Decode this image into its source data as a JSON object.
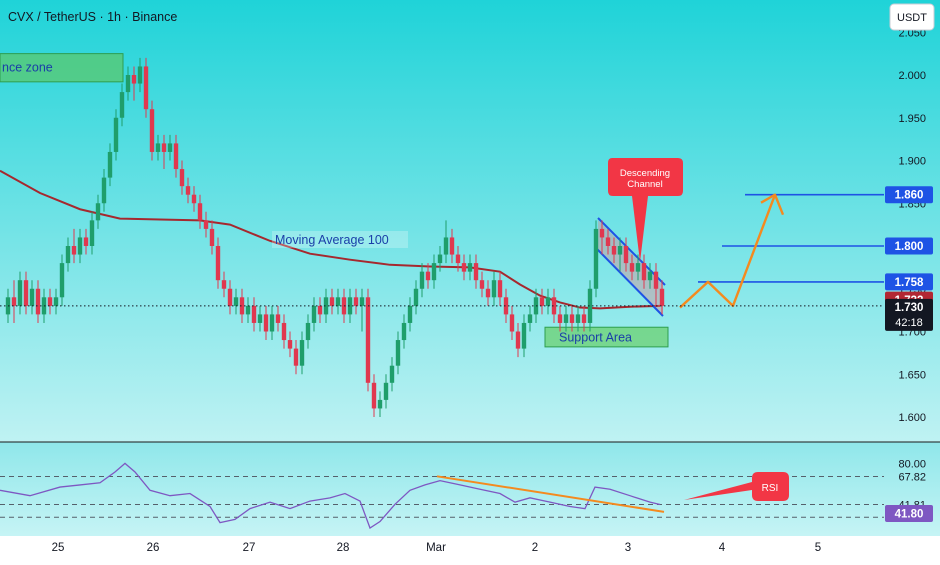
{
  "header": {
    "title": "CVX / TetherUS · 1h · Binance",
    "currency_button": "USDT"
  },
  "chart_data": {
    "type": "candlestick",
    "symbol": "CVX / TetherUS",
    "interval": "1h",
    "exchange": "Binance",
    "price_axis": {
      "ticks": [
        "1.600",
        "1.650",
        "1.700",
        "1.750",
        "1.800",
        "1.850",
        "1.900",
        "1.950",
        "2.000",
        "2.050"
      ],
      "ylim": [
        1.585,
        2.06
      ]
    },
    "x_axis": {
      "labels": [
        "25",
        "26",
        "27",
        "28",
        "Mar",
        "2",
        "3",
        "4",
        "5"
      ]
    },
    "moving_average": {
      "label": "Moving Average 100",
      "points": [
        [
          0,
          1.888
        ],
        [
          40,
          1.862
        ],
        [
          80,
          1.843
        ],
        [
          120,
          1.832
        ],
        [
          160,
          1.831
        ],
        [
          200,
          1.83
        ],
        [
          230,
          1.825
        ],
        [
          270,
          1.806
        ],
        [
          310,
          1.791
        ],
        [
          350,
          1.784
        ],
        [
          390,
          1.778
        ],
        [
          430,
          1.776
        ],
        [
          470,
          1.775
        ],
        [
          500,
          1.77
        ],
        [
          520,
          1.755
        ],
        [
          540,
          1.742
        ],
        [
          560,
          1.734
        ],
        [
          580,
          1.728
        ],
        [
          600,
          1.727
        ],
        [
          630,
          1.729
        ],
        [
          660,
          1.73
        ]
      ]
    },
    "candles": [
      [
        8,
        1.72,
        1.74,
        1.75,
        1.71
      ],
      [
        14,
        1.74,
        1.73,
        1.76,
        1.71
      ],
      [
        20,
        1.73,
        1.76,
        1.77,
        1.72
      ],
      [
        26,
        1.76,
        1.73,
        1.77,
        1.72
      ],
      [
        32,
        1.73,
        1.75,
        1.76,
        1.72
      ],
      [
        38,
        1.75,
        1.72,
        1.76,
        1.71
      ],
      [
        44,
        1.72,
        1.74,
        1.75,
        1.71
      ],
      [
        50,
        1.74,
        1.73,
        1.75,
        1.72
      ],
      [
        56,
        1.73,
        1.74,
        1.75,
        1.72
      ],
      [
        62,
        1.74,
        1.78,
        1.79,
        1.73
      ],
      [
        68,
        1.78,
        1.8,
        1.81,
        1.77
      ],
      [
        74,
        1.8,
        1.79,
        1.82,
        1.78
      ],
      [
        80,
        1.79,
        1.81,
        1.82,
        1.78
      ],
      [
        86,
        1.81,
        1.8,
        1.82,
        1.79
      ],
      [
        92,
        1.8,
        1.83,
        1.84,
        1.79
      ],
      [
        98,
        1.83,
        1.85,
        1.86,
        1.82
      ],
      [
        104,
        1.85,
        1.88,
        1.89,
        1.84
      ],
      [
        110,
        1.88,
        1.91,
        1.92,
        1.87
      ],
      [
        116,
        1.91,
        1.95,
        1.96,
        1.9
      ],
      [
        122,
        1.95,
        1.98,
        1.99,
        1.94
      ],
      [
        128,
        1.98,
        2.0,
        2.01,
        1.97
      ],
      [
        134,
        2.0,
        1.99,
        2.01,
        1.97
      ],
      [
        140,
        1.99,
        2.01,
        2.02,
        1.98
      ],
      [
        146,
        2.01,
        1.96,
        2.02,
        1.95
      ],
      [
        152,
        1.96,
        1.91,
        1.97,
        1.9
      ],
      [
        158,
        1.91,
        1.92,
        1.93,
        1.9
      ],
      [
        164,
        1.92,
        1.91,
        1.93,
        1.89
      ],
      [
        170,
        1.91,
        1.92,
        1.93,
        1.9
      ],
      [
        176,
        1.92,
        1.89,
        1.93,
        1.88
      ],
      [
        182,
        1.89,
        1.87,
        1.9,
        1.86
      ],
      [
        188,
        1.87,
        1.86,
        1.88,
        1.85
      ],
      [
        194,
        1.86,
        1.85,
        1.87,
        1.84
      ],
      [
        200,
        1.85,
        1.83,
        1.86,
        1.82
      ],
      [
        206,
        1.83,
        1.82,
        1.84,
        1.81
      ],
      [
        212,
        1.82,
        1.8,
        1.83,
        1.79
      ],
      [
        218,
        1.8,
        1.76,
        1.81,
        1.75
      ],
      [
        224,
        1.76,
        1.75,
        1.77,
        1.74
      ],
      [
        230,
        1.75,
        1.73,
        1.76,
        1.72
      ],
      [
        236,
        1.73,
        1.74,
        1.75,
        1.72
      ],
      [
        242,
        1.74,
        1.72,
        1.75,
        1.71
      ],
      [
        248,
        1.72,
        1.73,
        1.74,
        1.71
      ],
      [
        254,
        1.73,
        1.71,
        1.74,
        1.7
      ],
      [
        260,
        1.71,
        1.72,
        1.73,
        1.7
      ],
      [
        266,
        1.72,
        1.7,
        1.73,
        1.69
      ],
      [
        272,
        1.7,
        1.72,
        1.73,
        1.69
      ],
      [
        278,
        1.72,
        1.71,
        1.73,
        1.7
      ],
      [
        284,
        1.71,
        1.69,
        1.72,
        1.68
      ],
      [
        290,
        1.69,
        1.68,
        1.7,
        1.67
      ],
      [
        296,
        1.68,
        1.66,
        1.69,
        1.65
      ],
      [
        302,
        1.66,
        1.69,
        1.7,
        1.65
      ],
      [
        308,
        1.69,
        1.71,
        1.72,
        1.68
      ],
      [
        314,
        1.71,
        1.73,
        1.74,
        1.7
      ],
      [
        320,
        1.73,
        1.72,
        1.74,
        1.71
      ],
      [
        326,
        1.72,
        1.74,
        1.75,
        1.71
      ],
      [
        332,
        1.74,
        1.73,
        1.75,
        1.72
      ],
      [
        338,
        1.73,
        1.74,
        1.75,
        1.72
      ],
      [
        344,
        1.74,
        1.72,
        1.75,
        1.71
      ],
      [
        350,
        1.72,
        1.74,
        1.75,
        1.71
      ],
      [
        356,
        1.74,
        1.73,
        1.75,
        1.72
      ],
      [
        362,
        1.73,
        1.74,
        1.75,
        1.7
      ],
      [
        368,
        1.74,
        1.64,
        1.75,
        1.63
      ],
      [
        374,
        1.64,
        1.61,
        1.65,
        1.6
      ],
      [
        380,
        1.61,
        1.62,
        1.63,
        1.6
      ],
      [
        386,
        1.62,
        1.64,
        1.65,
        1.61
      ],
      [
        392,
        1.64,
        1.66,
        1.67,
        1.63
      ],
      [
        398,
        1.66,
        1.69,
        1.7,
        1.65
      ],
      [
        404,
        1.69,
        1.71,
        1.72,
        1.68
      ],
      [
        410,
        1.71,
        1.73,
        1.74,
        1.7
      ],
      [
        416,
        1.73,
        1.75,
        1.76,
        1.72
      ],
      [
        422,
        1.75,
        1.77,
        1.78,
        1.74
      ],
      [
        428,
        1.77,
        1.76,
        1.78,
        1.75
      ],
      [
        434,
        1.76,
        1.78,
        1.79,
        1.75
      ],
      [
        440,
        1.78,
        1.79,
        1.8,
        1.77
      ],
      [
        446,
        1.79,
        1.81,
        1.83,
        1.78
      ],
      [
        452,
        1.81,
        1.79,
        1.82,
        1.78
      ],
      [
        458,
        1.79,
        1.78,
        1.8,
        1.77
      ],
      [
        464,
        1.78,
        1.77,
        1.79,
        1.76
      ],
      [
        470,
        1.77,
        1.78,
        1.79,
        1.76
      ],
      [
        476,
        1.78,
        1.76,
        1.79,
        1.75
      ],
      [
        482,
        1.76,
        1.75,
        1.77,
        1.74
      ],
      [
        488,
        1.75,
        1.74,
        1.76,
        1.73
      ],
      [
        494,
        1.74,
        1.76,
        1.77,
        1.73
      ],
      [
        500,
        1.76,
        1.74,
        1.77,
        1.73
      ],
      [
        506,
        1.74,
        1.72,
        1.75,
        1.71
      ],
      [
        512,
        1.72,
        1.7,
        1.73,
        1.69
      ],
      [
        518,
        1.7,
        1.68,
        1.71,
        1.67
      ],
      [
        524,
        1.68,
        1.71,
        1.72,
        1.67
      ],
      [
        530,
        1.71,
        1.72,
        1.73,
        1.7
      ],
      [
        536,
        1.72,
        1.74,
        1.75,
        1.71
      ],
      [
        542,
        1.74,
        1.73,
        1.75,
        1.72
      ],
      [
        548,
        1.73,
        1.74,
        1.75,
        1.72
      ],
      [
        554,
        1.74,
        1.72,
        1.75,
        1.71
      ],
      [
        560,
        1.72,
        1.71,
        1.73,
        1.7
      ],
      [
        566,
        1.71,
        1.72,
        1.73,
        1.7
      ],
      [
        572,
        1.72,
        1.71,
        1.73,
        1.7
      ],
      [
        578,
        1.71,
        1.72,
        1.73,
        1.7
      ],
      [
        584,
        1.72,
        1.71,
        1.73,
        1.7
      ],
      [
        590,
        1.71,
        1.75,
        1.76,
        1.7
      ],
      [
        596,
        1.75,
        1.82,
        1.83,
        1.74
      ],
      [
        602,
        1.82,
        1.81,
        1.83,
        1.79
      ],
      [
        608,
        1.81,
        1.8,
        1.82,
        1.79
      ],
      [
        614,
        1.8,
        1.79,
        1.81,
        1.78
      ],
      [
        620,
        1.79,
        1.8,
        1.81,
        1.77
      ],
      [
        626,
        1.8,
        1.78,
        1.81,
        1.77
      ],
      [
        632,
        1.78,
        1.77,
        1.79,
        1.76
      ],
      [
        638,
        1.77,
        1.78,
        1.79,
        1.76
      ],
      [
        644,
        1.78,
        1.76,
        1.79,
        1.75
      ],
      [
        650,
        1.76,
        1.77,
        1.78,
        1.75
      ],
      [
        656,
        1.77,
        1.75,
        1.78,
        1.73
      ],
      [
        662,
        1.75,
        1.73,
        1.76,
        1.72
      ]
    ],
    "levels": [
      {
        "price": 1.86,
        "label": "1.860",
        "color": "#1e53e5"
      },
      {
        "price": 1.8,
        "label": "1.800",
        "color": "#1e53e5"
      },
      {
        "price": 1.758,
        "label": "1.758",
        "color": "#1e53e5"
      }
    ],
    "current_price": {
      "price": 1.73,
      "label": "1.730",
      "countdown": "42:18",
      "color": "#131722"
    },
    "ma_price": {
      "price": 1.732,
      "label": "1.732",
      "color": "#b22833"
    },
    "zones": {
      "resistance": {
        "label": "nce zone",
        "price_top": 2.025,
        "price_bottom": 1.992
      },
      "support": {
        "label": "Support Area",
        "price_top": 1.705,
        "price_bottom": 1.682
      }
    },
    "annotations": {
      "descending_channel": "Descending\nChannel",
      "rsi_label": "RSI"
    },
    "projection": [
      [
        680,
        1.728
      ],
      [
        708,
        1.758
      ],
      [
        733,
        1.73
      ],
      [
        775,
        1.86
      ]
    ],
    "rsi": {
      "ticks": [
        "80.00",
        "67.82",
        "41.81"
      ],
      "current": "41.80",
      "points": [
        [
          0,
          55
        ],
        [
          30,
          50
        ],
        [
          60,
          58
        ],
        [
          80,
          60
        ],
        [
          100,
          62
        ],
        [
          115,
          72
        ],
        [
          125,
          80
        ],
        [
          135,
          72
        ],
        [
          150,
          55
        ],
        [
          170,
          50
        ],
        [
          190,
          52
        ],
        [
          210,
          40
        ],
        [
          220,
          25
        ],
        [
          235,
          28
        ],
        [
          250,
          38
        ],
        [
          270,
          44
        ],
        [
          290,
          38
        ],
        [
          310,
          45
        ],
        [
          330,
          48
        ],
        [
          345,
          52
        ],
        [
          360,
          45
        ],
        [
          370,
          20
        ],
        [
          380,
          26
        ],
        [
          395,
          42
        ],
        [
          410,
          55
        ],
        [
          425,
          60
        ],
        [
          440,
          64
        ],
        [
          460,
          60
        ],
        [
          480,
          56
        ],
        [
          500,
          52
        ],
        [
          515,
          44
        ],
        [
          530,
          48
        ],
        [
          550,
          44
        ],
        [
          570,
          40
        ],
        [
          585,
          38
        ],
        [
          595,
          58
        ],
        [
          610,
          56
        ],
        [
          630,
          50
        ],
        [
          650,
          44
        ],
        [
          660,
          41.8
        ]
      ]
    }
  }
}
